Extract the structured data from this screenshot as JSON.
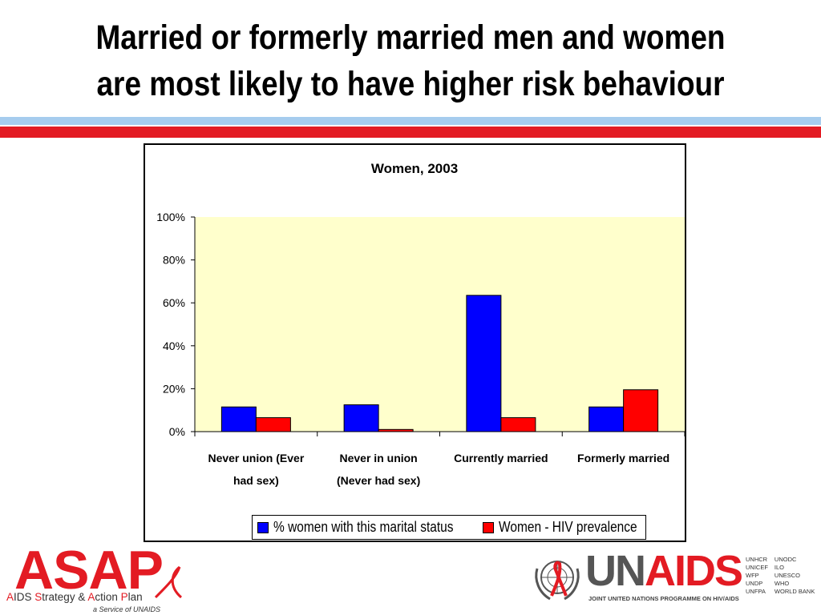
{
  "slide": {
    "title_line1": "Married or formerly married men and women",
    "title_line2": "are most likely to have higher risk behaviour"
  },
  "colors": {
    "stripe_blue": "#a6ccee",
    "stripe_red": "#e31b23",
    "plot_background": "#ffffcc",
    "series1": "#0000ff",
    "series2": "#ff0000"
  },
  "chart_data": {
    "type": "bar",
    "title": "Women, 2003",
    "categories": [
      [
        "Never union (Ever",
        "had sex)"
      ],
      [
        "Never in union",
        "(Never had sex)"
      ],
      [
        "Currently married"
      ],
      [
        "Formerly married"
      ]
    ],
    "series": [
      {
        "name": "%  women with this marital status",
        "values": [
          11.5,
          12.5,
          63.5,
          11.5
        ]
      },
      {
        "name": "Women - HIV prevalence",
        "values": [
          6.5,
          1.0,
          6.5,
          19.5
        ]
      }
    ],
    "ylim": [
      0,
      100
    ],
    "yticks": [
      0,
      20,
      40,
      60,
      80,
      100
    ],
    "ytick_labels": [
      "0%",
      "20%",
      "40%",
      "60%",
      "80%",
      "100%"
    ],
    "grid": false,
    "legend_position": "bottom-right"
  },
  "logos": {
    "asap": {
      "name": "ASAP",
      "tagline_parts": [
        "A",
        "IDS ",
        "S",
        "trategy & ",
        "A",
        "ction ",
        "P",
        "lan"
      ],
      "sub": "a Service of UNAIDS"
    },
    "unaids": {
      "name_un": "UN",
      "name_aids": "AIDS",
      "tagline": "JOINT UNITED NATIONS PROGRAMME ON HIV/AIDS",
      "partners_col1": [
        "UNHCR",
        "UNICEF",
        "WFP",
        "UNDP",
        "UNFPA"
      ],
      "partners_col2": [
        "UNODC",
        "ILO",
        "UNESCO",
        "WHO",
        "WORLD BANK"
      ]
    }
  }
}
